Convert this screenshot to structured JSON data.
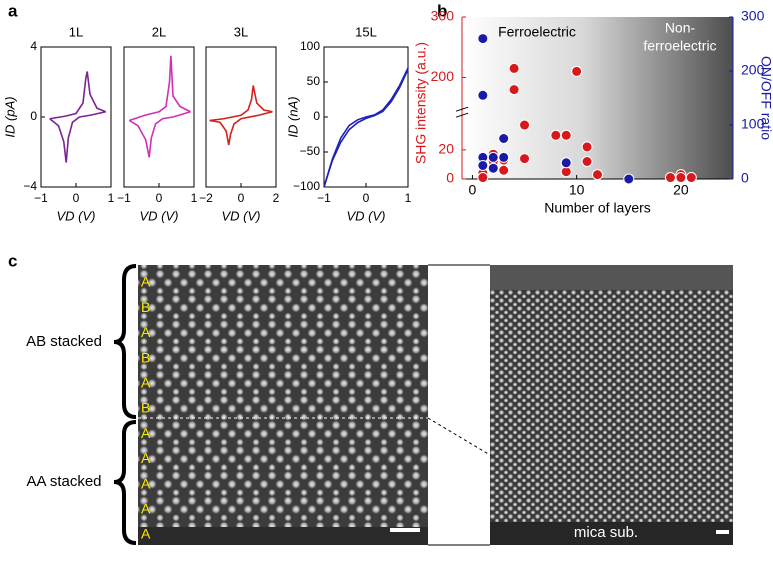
{
  "figure": {
    "panel_labels": [
      "a",
      "b",
      "c"
    ],
    "c": {
      "stack_labels": [
        "AB stacked",
        "AA stacked"
      ],
      "layer_labels": [
        "A",
        "B",
        "A",
        "B",
        "A",
        "B",
        "A",
        "A",
        "A",
        "A",
        "A"
      ],
      "substrate": "mica sub."
    }
  },
  "chart_data": [
    {
      "type": "line",
      "title": "1L",
      "xlabel": "VD (V)",
      "ylabel": "ID (pA)",
      "xlim": [
        -1,
        1
      ],
      "xticks": [
        {
          "value": -1,
          "label": "−1"
        },
        0,
        1
      ],
      "ylim": [
        -4,
        4
      ],
      "yticks": [
        {
          "value": -4,
          "label": "−4"
        },
        0,
        4
      ],
      "series": [
        {
          "color": "#7b2390",
          "x": [
            -0.75,
            -0.3,
            0,
            0.2,
            0.28,
            0.32,
            0.4,
            0.6,
            0.85
          ],
          "values": [
            -0.1,
            0.05,
            0.2,
            0.8,
            2.2,
            2.6,
            1.3,
            0.5,
            0.3
          ]
        },
        {
          "color": "#7b2390",
          "x": [
            0.85,
            0.4,
            0.1,
            -0.1,
            -0.22,
            -0.28,
            -0.35,
            -0.5,
            -0.75
          ],
          "values": [
            0.3,
            0.1,
            0,
            -0.3,
            -1.2,
            -2.6,
            -1.4,
            -0.5,
            -0.1
          ]
        }
      ]
    },
    {
      "type": "line",
      "title": "2L",
      "xlabel": "VD (V)",
      "xlim": [
        -1,
        1
      ],
      "xticks": [
        {
          "value": -1,
          "label": "−1"
        },
        0,
        1
      ],
      "ylim": [
        -4,
        4
      ],
      "series": [
        {
          "color": "#d22fb6",
          "x": [
            -0.85,
            -0.4,
            0,
            0.2,
            0.3,
            0.34,
            0.4,
            0.6,
            0.9
          ],
          "values": [
            -0.2,
            0.1,
            0.3,
            0.6,
            2,
            3.5,
            1.2,
            0.6,
            0.3
          ]
        },
        {
          "color": "#d22fb6",
          "x": [
            0.9,
            0.4,
            0.1,
            -0.1,
            -0.22,
            -0.28,
            -0.38,
            -0.6,
            -0.85
          ],
          "values": [
            0.3,
            0,
            -0.1,
            -0.4,
            -1.2,
            -2.3,
            -1.3,
            -0.5,
            -0.2
          ]
        }
      ]
    },
    {
      "type": "line",
      "title": "3L",
      "xlabel": "VD (V)",
      "xlim": [
        -2,
        2
      ],
      "xticks": [
        {
          "value": -2,
          "label": "−2"
        },
        0,
        2
      ],
      "ylim": [
        -4,
        4
      ],
      "series": [
        {
          "color": "#d3221c",
          "x": [
            -1.8,
            -1,
            0,
            0.4,
            0.6,
            0.7,
            0.9,
            1.3,
            1.8
          ],
          "values": [
            -0.2,
            -0.1,
            0.1,
            0.4,
            1,
            1.8,
            0.8,
            0.4,
            0.3
          ]
        },
        {
          "color": "#d3221c",
          "x": [
            1.8,
            1,
            0,
            -0.4,
            -0.6,
            -0.7,
            -0.85,
            -1.2,
            -1.8
          ],
          "values": [
            0.3,
            0.1,
            -0.1,
            -0.4,
            -1,
            -1.6,
            -0.8,
            -0.3,
            -0.2
          ]
        }
      ]
    },
    {
      "type": "line",
      "title": "15L",
      "xlabel": "VD (V)",
      "ylabel": "ID (nA)",
      "xlim": [
        -1,
        1
      ],
      "xticks": [
        {
          "value": -1,
          "label": "−1"
        },
        0,
        1
      ],
      "ylim": [
        -100,
        100
      ],
      "yticks": [
        100,
        50,
        0,
        {
          "value": -50,
          "label": "−50"
        },
        {
          "value": -100,
          "label": "−100"
        }
      ],
      "series": [
        {
          "color": "#1f24b8",
          "x": [
            -1,
            -0.8,
            -0.6,
            -0.4,
            -0.2,
            0,
            0.2,
            0.4,
            0.6,
            0.8,
            1
          ],
          "values": [
            -100,
            -60,
            -30,
            -12,
            -4,
            0,
            3,
            10,
            25,
            45,
            70
          ]
        },
        {
          "color": "#1f24b8",
          "x": [
            1,
            0.8,
            0.6,
            0.4,
            0.2,
            0,
            -0.2,
            -0.4,
            -0.6,
            -0.8,
            -1
          ],
          "values": [
            68,
            42,
            22,
            8,
            2,
            -2,
            -8,
            -18,
            -36,
            -62,
            -100
          ]
        }
      ]
    },
    {
      "type": "scatter",
      "xlabel": "Number of layers",
      "ylabel": "SHG intensity (a.u.)",
      "y2label": "ON/OFF ratio",
      "annotations": [
        "Ferroelectric",
        "Non-",
        "ferroelectric"
      ],
      "xlim": [
        -1,
        25
      ],
      "xticks": [
        0,
        10,
        20
      ],
      "ylim": [
        0,
        300
      ],
      "y_break": [
        40,
        150
      ],
      "yticks": [
        0,
        20,
        200,
        300
      ],
      "y2lim": [
        0,
        300
      ],
      "y2ticks": [
        0,
        100,
        200,
        300
      ],
      "series": [
        {
          "color": "#d7191c",
          "x": [
            1,
            1,
            1,
            2,
            2,
            2,
            3,
            3,
            4,
            4,
            5,
            5,
            8,
            9,
            9,
            10,
            11,
            11,
            12,
            19,
            20,
            20,
            21
          ],
          "values": [
            2,
            4,
            1,
            8,
            12,
            17,
            6,
            13,
            215,
            180,
            14,
            37,
            30,
            30,
            5,
            210,
            12,
            22,
            3,
            1,
            3,
            1,
            1
          ]
        },
        {
          "color": "#1a1aa6",
          "axis": "y2",
          "x": [
            1,
            1,
            1,
            1,
            2,
            2,
            3,
            3,
            9,
            15
          ],
          "values": [
            260,
            155,
            40,
            25,
            40,
            20,
            75,
            40,
            30,
            0
          ]
        }
      ]
    }
  ]
}
